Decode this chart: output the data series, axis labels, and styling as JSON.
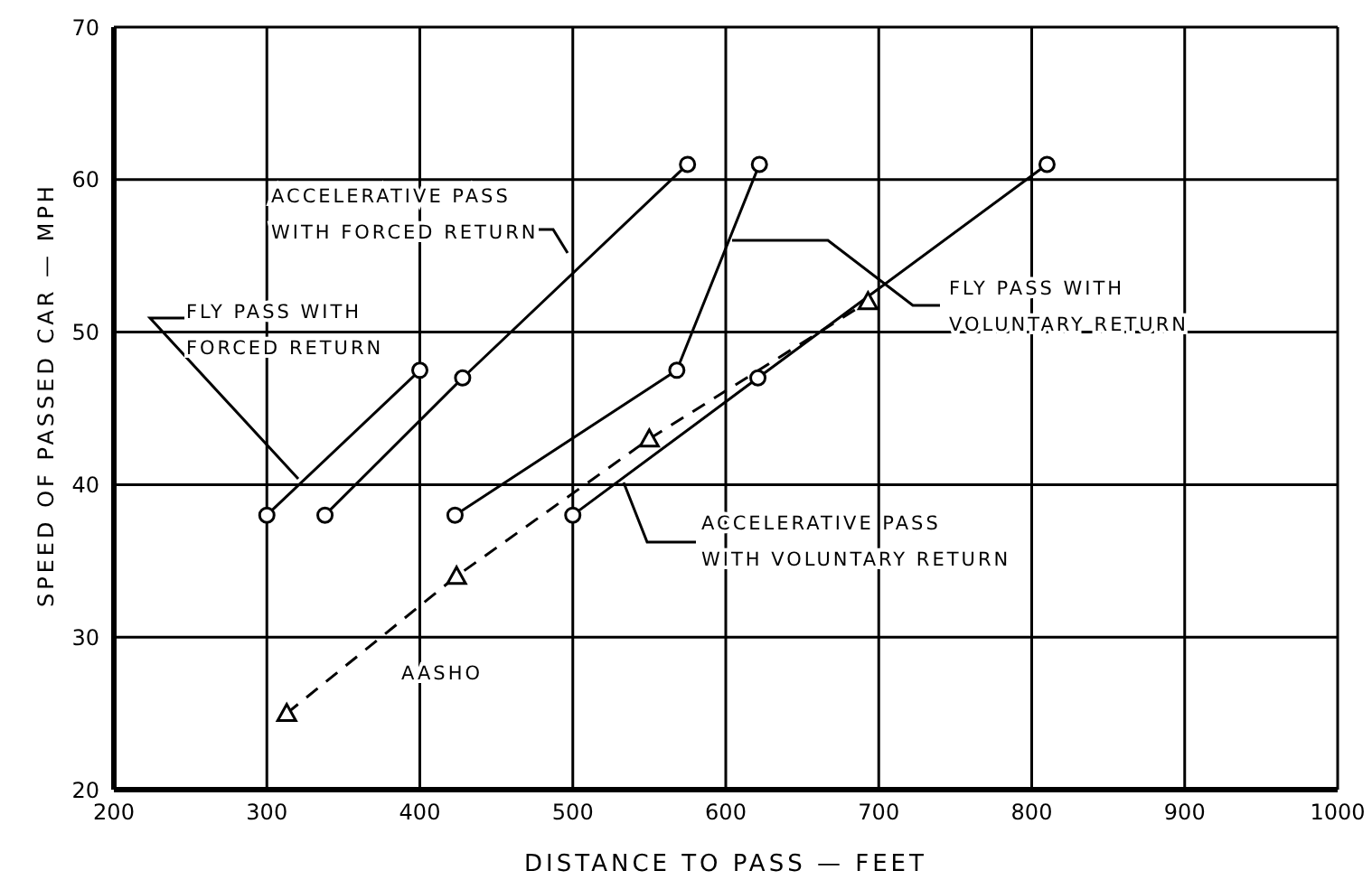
{
  "chart_data": {
    "type": "line",
    "xlabel": "DISTANCE TO PASS — FEET",
    "ylabel": "SPEED OF PASSED CAR — MPH",
    "xlim": [
      200,
      1000
    ],
    "xticks": [
      200,
      300,
      400,
      500,
      600,
      700,
      800,
      900,
      1000
    ],
    "ylim": [
      20,
      70
    ],
    "yticks": [
      20,
      30,
      40,
      50,
      60,
      70
    ],
    "grid": true,
    "legend": false,
    "marker": "circle",
    "series": [
      {
        "name": "FLY PASS WITH FORCED RETURN",
        "color": "#000000",
        "x": [
          300,
          400
        ],
        "values": [
          38,
          47.5
        ]
      },
      {
        "name": "ACCELERATIVE PASS WITH FORCED RETURN",
        "color": "#000000",
        "x": [
          338,
          428,
          575
        ],
        "values": [
          38,
          47,
          61
        ]
      },
      {
        "name": "FLY PASS WITH VOLUNTARY RETURN",
        "color": "#000000",
        "x": [
          423,
          568,
          622
        ],
        "values": [
          38,
          47.5,
          61
        ]
      },
      {
        "name": "ACCELERATIVE PASS WITH VOLUNTARY RETURN",
        "color": "#000000",
        "x": [
          500,
          621,
          810
        ],
        "values": [
          38,
          47,
          61
        ]
      },
      {
        "name": "AASHO",
        "color": "#000000",
        "x": [
          313,
          424,
          550,
          693
        ],
        "values": [
          25,
          34,
          43,
          52
        ],
        "marker": "triangle",
        "line_style": "dashed"
      }
    ]
  }
}
